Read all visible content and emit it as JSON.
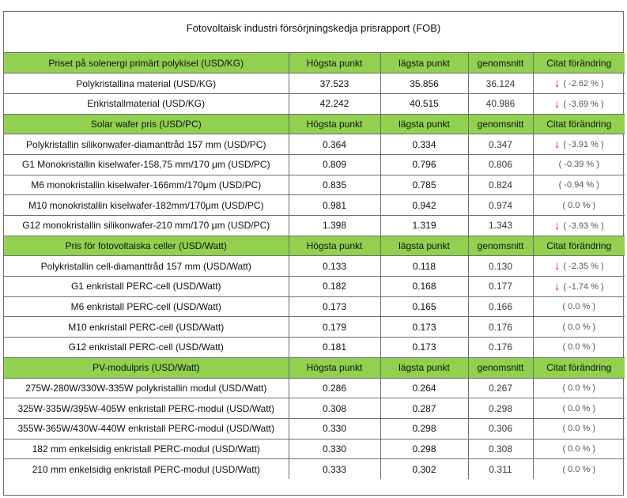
{
  "title": "Fotovoltaisk industri försörjningskedja prisrapport (FOB)",
  "columns": [
    "Högsta punkt",
    "lägsta punkt",
    "genomsnitt",
    "Citat förändring"
  ],
  "sections": [
    {
      "name": "Priset på solenergi primärt polykisel (USD/KG)",
      "rows": [
        {
          "item": "Polykristallina material (USD/KG)",
          "high": "37.523",
          "low": "35.856",
          "avg": "36.124",
          "change": "( -2.62 % )",
          "arrow": "down"
        },
        {
          "item": "Enkristallmaterial (USD/KG)",
          "high": "42.242",
          "low": "40.515",
          "avg": "40.986",
          "change": "( -3.69 % )",
          "arrow": "down"
        }
      ]
    },
    {
      "name": "Solar wafer pris (USD/PC)",
      "rows": [
        {
          "item": "Polykristallin silikonwafer-diamanttråd 157 mm (USD/PC)",
          "high": "0.364",
          "low": "0.334",
          "avg": "0.347",
          "change": "( -3.91 % )",
          "arrow": "down"
        },
        {
          "item": "G1 Monokristallin kiselwafer-158,75 mm/170 μm (USD/PC)",
          "high": "0.809",
          "low": "0.796",
          "avg": "0.806",
          "change": "( -0.39 % )",
          "arrow": "none"
        },
        {
          "item": "M6 monokristallin kiselwafer-166mm/170μm (USD/PC)",
          "high": "0.835",
          "low": "0.785",
          "avg": "0.824",
          "change": "( -0.94 % )",
          "arrow": "none"
        },
        {
          "item": "M10 monokristallin kiselwafer-182mm/170μm (USD/PC)",
          "high": "0.981",
          "low": "0.942",
          "avg": "0.974",
          "change": "( 0.0 % )",
          "arrow": "none"
        },
        {
          "item": "G12 monokristallin silikonwafer-210 mm/170 μm (USD/PC)",
          "high": "1.398",
          "low": "1.319",
          "avg": "1.343",
          "change": "( -3.93 % )",
          "arrow": "down"
        }
      ]
    },
    {
      "name": "Pris för fotovoltaiska celler (USD/Watt)",
      "rows": [
        {
          "item": "Polykristallin cell-diamanttråd 157 mm (USD/Watt)",
          "high": "0.133",
          "low": "0.118",
          "avg": "0.130",
          "change": "( -2.35 % )",
          "arrow": "down"
        },
        {
          "item": "G1 enkristall PERC-cell (USD/Watt)",
          "high": "0.182",
          "low": "0.168",
          "avg": "0.177",
          "change": "( -1.74 % )",
          "arrow": "down"
        },
        {
          "item": "M6 enkristall PERC-cell (USD/Watt)",
          "high": "0.173",
          "low": "0.165",
          "avg": "0.166",
          "change": "( 0.0 % )",
          "arrow": "none"
        },
        {
          "item": "M10 enkristall PERC-cell (USD/Watt)",
          "high": "0.179",
          "low": "0.173",
          "avg": "0.176",
          "change": "( 0.0 % )",
          "arrow": "none"
        },
        {
          "item": "G12 enkristall PERC-cell (USD/Watt)",
          "high": "0.181",
          "low": "0.173",
          "avg": "0.176",
          "change": "( 0.0 % )",
          "arrow": "none"
        }
      ]
    },
    {
      "name": "PV-modulpris (USD/Watt)",
      "rows": [
        {
          "item": "275W-280W/330W-335W polykristallin modul (USD/Watt)",
          "high": "0.286",
          "low": "0.264",
          "avg": "0.267",
          "change": "( 0.0 % )",
          "arrow": "none"
        },
        {
          "item": "325W-335W/395W-405W enkristall PERC-modul (USD/Watt)",
          "high": "0.308",
          "low": "0.287",
          "avg": "0.298",
          "change": "( 0.0 % )",
          "arrow": "none"
        },
        {
          "item": "355W-365W/430W-440W enkristall PERC-modul (USD/Watt)",
          "high": "0.330",
          "low": "0.298",
          "avg": "0.306",
          "change": "( 0.0 % )",
          "arrow": "none"
        },
        {
          "item": "182 mm enkelsidig enkristall PERC-modul (USD/Watt)",
          "high": "0.330",
          "low": "0.298",
          "avg": "0.308",
          "change": "( 0.0 % )",
          "arrow": "none"
        },
        {
          "item": "210 mm enkelsidig enkristall PERC-modul (USD/Watt)",
          "high": "0.333",
          "low": "0.302",
          "avg": "0.311",
          "change": "( 0.0 % )",
          "arrow": "none"
        }
      ]
    }
  ],
  "arrow_glyph": "↓",
  "colors": {
    "section_header": "#92d050",
    "arrow_down": "#e01010",
    "border": "#6f6f6f"
  }
}
